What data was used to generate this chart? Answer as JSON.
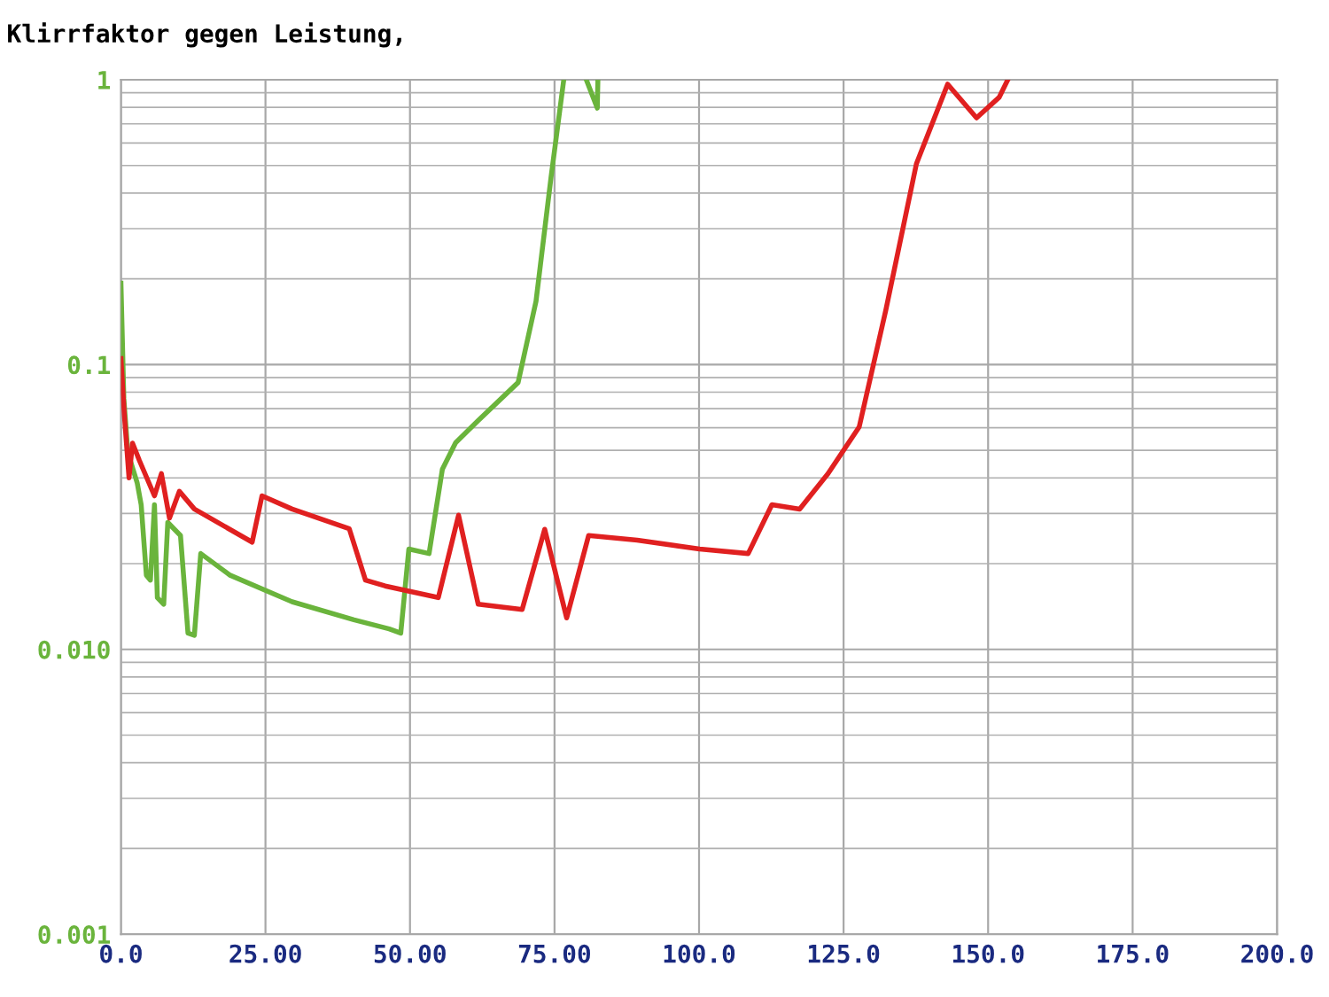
{
  "chart_data": {
    "type": "line",
    "title": "Klirrfaktor gegen Leistung,",
    "log": "y",
    "grid": true,
    "legend": false,
    "marker": "none",
    "line_style": "solid",
    "xlim": [
      0,
      200
    ],
    "ylim": [
      0.001,
      1
    ],
    "xticks": [
      {
        "value": 0,
        "label": "0.0"
      },
      {
        "value": 25,
        "label": "25.00"
      },
      {
        "value": 50,
        "label": "50.00"
      },
      {
        "value": 75,
        "label": "75.00"
      },
      {
        "value": 100,
        "label": "100.0"
      },
      {
        "value": 125,
        "label": "125.0"
      },
      {
        "value": 150,
        "label": "150.0"
      },
      {
        "value": 175,
        "label": "175.0"
      },
      {
        "value": 200,
        "label": "200.0"
      }
    ],
    "yticks": [
      {
        "value": 0.001,
        "label": "0.001"
      },
      {
        "value": 0.01,
        "label": "0.010"
      },
      {
        "value": 0.1,
        "label": "0.1"
      },
      {
        "value": 1,
        "label": "1"
      }
    ],
    "series": [
      {
        "color": "#e02020",
        "x": [
          0,
          0.6,
          1.4,
          2.0,
          3.2,
          5.8,
          7.0,
          8.4,
          10.1,
          12.7,
          22.7,
          24.4,
          29.6,
          39.5,
          42.3,
          45.7,
          54.9,
          58.4,
          61.8,
          69.4,
          73.3,
          77.1,
          80.9,
          89.3,
          100.1,
          108.5,
          112.6,
          117.4,
          122.3,
          127.7,
          132.3,
          137.6,
          143.0,
          148.0,
          151.9,
          153.4
        ],
        "values": [
          0.105,
          0.066,
          0.04,
          0.053,
          0.046,
          0.0346,
          0.0414,
          0.0289,
          0.0359,
          0.0311,
          0.0238,
          0.0346,
          0.0311,
          0.0265,
          0.0175,
          0.0167,
          0.0152,
          0.0296,
          0.0144,
          0.0138,
          0.0264,
          0.0129,
          0.0251,
          0.0242,
          0.0225,
          0.0217,
          0.0322,
          0.0311,
          0.0414,
          0.0604,
          0.155,
          0.507,
          0.965,
          0.735,
          0.867,
          1.0
        ]
      },
      {
        "color": "#6ab43c",
        "x": [
          0,
          0.5,
          1.2,
          2.8,
          3.5,
          4.4,
          5.1,
          5.8,
          6.3,
          7.4,
          8.1,
          10.3,
          11.6,
          12.7,
          13.8,
          18.9,
          29.6,
          40.3,
          46.4,
          48.4,
          49.8,
          53.3,
          55.6,
          57.9,
          61.8,
          68.7,
          71.8,
          74.4,
          76.6,
          78.5,
          80.5,
          82.4,
          82.5
        ],
        "values": [
          0.193,
          0.076,
          0.049,
          0.0385,
          0.0322,
          0.0182,
          0.0175,
          0.0322,
          0.0152,
          0.0144,
          0.0279,
          0.0251,
          0.0114,
          0.0112,
          0.0217,
          0.0182,
          0.0147,
          0.0127,
          0.0118,
          0.0114,
          0.0225,
          0.0217,
          0.0429,
          0.0532,
          0.0636,
          0.0865,
          0.167,
          0.455,
          1.0,
          null,
          1.0,
          0.795,
          1.0
        ]
      }
    ]
  }
}
